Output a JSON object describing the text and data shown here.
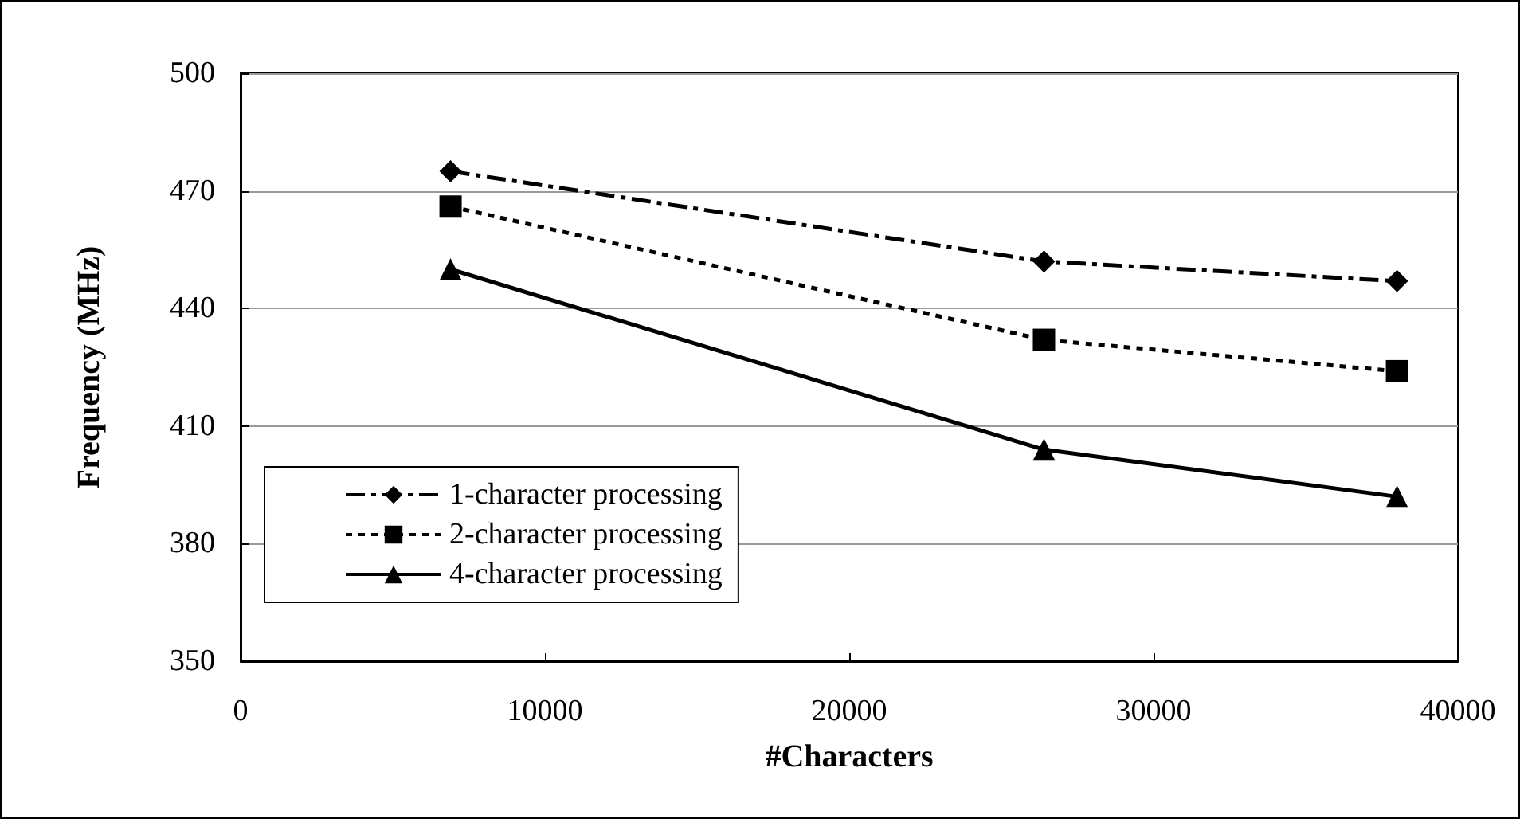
{
  "chart_data": {
    "type": "line",
    "xlabel": "#Characters",
    "ylabel": "Frequency (MHz)",
    "x": [
      6900,
      26400,
      38000
    ],
    "xlim": [
      0,
      40000
    ],
    "xticks": [
      0,
      10000,
      20000,
      30000,
      40000
    ],
    "ylim": [
      350,
      500
    ],
    "yticks": [
      350,
      380,
      410,
      440,
      470,
      500
    ],
    "grid": "y",
    "legend": "bottom left",
    "series": [
      {
        "name": "1-character processing",
        "color": "#000000",
        "values": [
          475,
          452,
          447
        ],
        "marker": "diamond",
        "line_style": "dashed"
      },
      {
        "name": "2-character processing",
        "color": "#000000",
        "values": [
          466,
          432,
          424
        ],
        "marker": "square",
        "line_style": "dotted"
      },
      {
        "name": "4-character processing",
        "color": "#000000",
        "values": [
          450,
          404,
          392
        ],
        "marker": "triangle",
        "line_style": "solid"
      }
    ]
  }
}
